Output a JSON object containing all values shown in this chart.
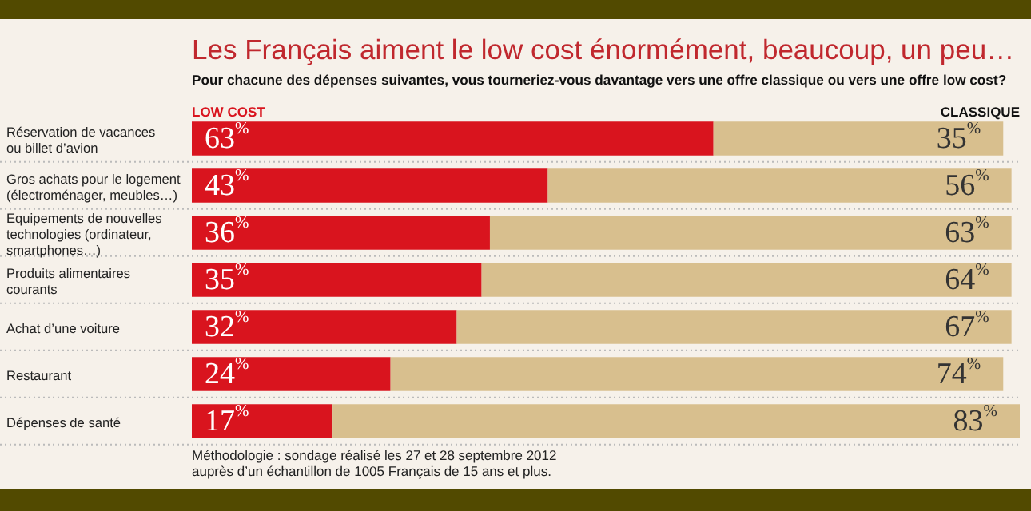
{
  "chart_data": {
    "type": "bar",
    "orientation": "horizontal",
    "stacked": true,
    "title": "Les Français aiment le low cost énormément, beaucoup, un peu…",
    "subtitle": "Pour chacune des dépenses suivantes, vous tourneriez-vous davantage vers une offre classique ou vers une offre low cost?",
    "categories": [
      "Réservation de vacances\nou billet d’avion",
      "Gros achats pour le logement\n(électroménager, meubles…)",
      "Equipements de nouvelles\ntechnologies (ordinateur,\nsmartphones…)",
      "Produits alimentaires\ncourants",
      "Achat d’une voiture",
      "Restaurant",
      "Dépenses de santé"
    ],
    "xlim": [
      0,
      100
    ],
    "tick_labels": "y",
    "series": [
      {
        "name": "LOW COST",
        "color": "#d9141e",
        "values": [
          63,
          43,
          36,
          35,
          32,
          24,
          17
        ],
        "value_labels": [
          "63$^{%}$",
          "43$^{%}$",
          "36$^{%}$",
          "35$^{%}$",
          "32$^{%}$",
          "24$^{%}$",
          "17$^{%}$"
        ]
      },
      {
        "name": "CLASSIQUE",
        "color": "#d8bf8e",
        "values": [
          35,
          56,
          63,
          64,
          67,
          74,
          83
        ],
        "value_labels": [
          "35$^{%}$",
          "56$^{%}$",
          "63$^{%}$",
          "64$^{%}$",
          "67$^{%}$",
          "74$^{%}$",
          "83$^{%}$"
        ]
      }
    ],
    "annotations": [
      "Méthodologie : sondage réalisé les 27 et 28 septembre 2012\nauprès d’un échantillon de 1005 Français de 15 ans et plus."
    ]
  }
}
